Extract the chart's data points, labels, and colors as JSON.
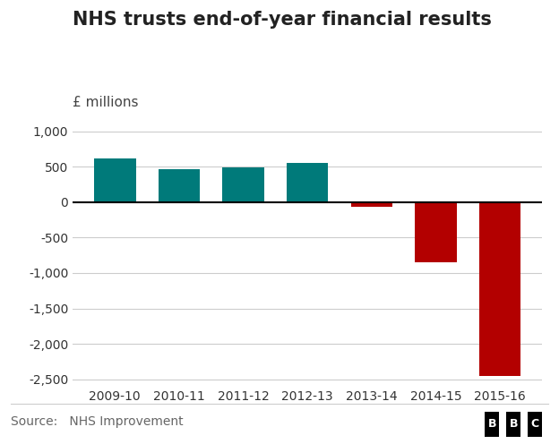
{
  "title": "NHS trusts end-of-year financial results",
  "ylabel": "£ millions",
  "source": "Source:   NHS Improvement",
  "bbc_label": "BBC",
  "categories": [
    "2009-10",
    "2010-11",
    "2011-12",
    "2012-13",
    "2013-14",
    "2014-15",
    "2015-16"
  ],
  "values": [
    620,
    470,
    491,
    550,
    -60,
    -843,
    -2450
  ],
  "colors": [
    "#007A7A",
    "#007A7A",
    "#007A7A",
    "#007A7A",
    "#B30000",
    "#B30000",
    "#B30000"
  ],
  "ylim": [
    -2600,
    1100
  ],
  "yticks": [
    -2500,
    -2000,
    -1500,
    -1000,
    -500,
    0,
    500,
    1000
  ],
  "background_color": "#FFFFFF",
  "grid_color": "#CCCCCC",
  "bar_width": 0.65,
  "title_fontsize": 15,
  "ylabel_fontsize": 11,
  "tick_fontsize": 10,
  "source_fontsize": 10
}
